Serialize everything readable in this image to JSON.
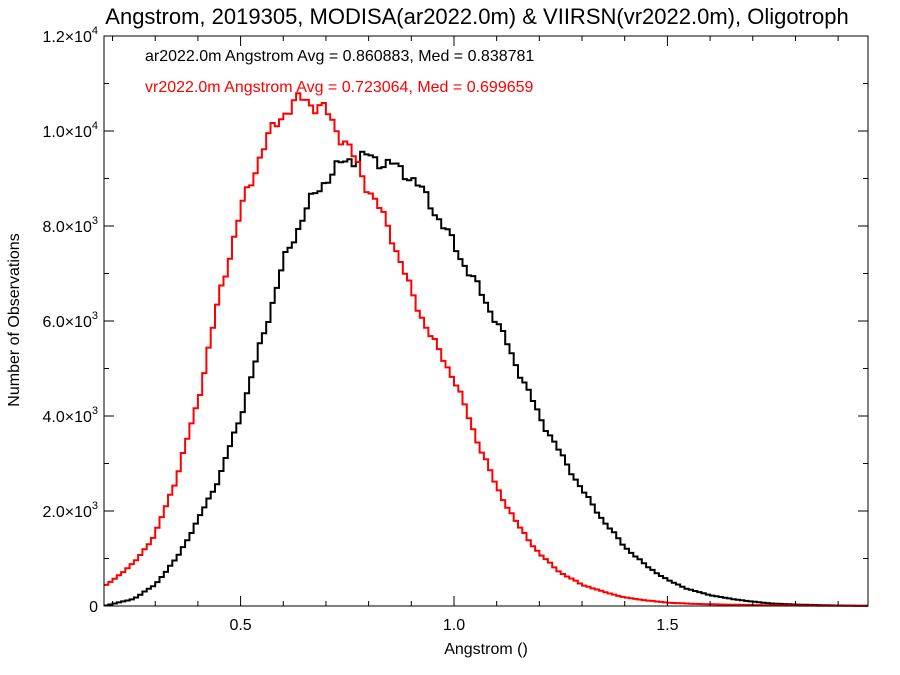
{
  "chart_data": {
    "type": "histogram-step",
    "title": "Angstrom, 2019305, MODISA(ar2022.0m) & VIIRSN(vr2022.0m), Oligotroph",
    "xlabel": "Angstrom ()",
    "ylabel": "Number of Observations",
    "xlim": [
      0.18,
      1.97
    ],
    "ylim": [
      0,
      12000
    ],
    "x_ticks": [
      {
        "value": 0.5,
        "label": "0.5"
      },
      {
        "value": 1.0,
        "label": "1.0"
      },
      {
        "value": 1.5,
        "label": "1.5"
      }
    ],
    "y_ticks": [
      {
        "value": 0,
        "mantissa": "0",
        "exp": ""
      },
      {
        "value": 2000,
        "mantissa": "2.0×10",
        "exp": "3"
      },
      {
        "value": 4000,
        "mantissa": "4.0×10",
        "exp": "3"
      },
      {
        "value": 6000,
        "mantissa": "6.0×10",
        "exp": "3"
      },
      {
        "value": 8000,
        "mantissa": "8.0×10",
        "exp": "3"
      },
      {
        "value": 10000,
        "mantissa": "1.0×10",
        "exp": "4"
      },
      {
        "value": 12000,
        "mantissa": "1.2×10",
        "exp": "4"
      }
    ],
    "annotations": [
      {
        "text": "ar2022.0m Angstrom Avg = 0.860883, Med = 0.838781",
        "color": "#000000"
      },
      {
        "text": "vr2022.0m Angstrom Avg = 0.723064, Med = 0.699659",
        "color": "#ff0000"
      }
    ],
    "series": [
      {
        "color": "#000000",
        "points": [
          [
            0.18,
            0
          ],
          [
            0.25,
            150
          ],
          [
            0.3,
            450
          ],
          [
            0.35,
            1000
          ],
          [
            0.4,
            1800
          ],
          [
            0.45,
            2700
          ],
          [
            0.5,
            4000
          ],
          [
            0.55,
            5600
          ],
          [
            0.6,
            7200
          ],
          [
            0.65,
            8300
          ],
          [
            0.7,
            9000
          ],
          [
            0.75,
            9400
          ],
          [
            0.8,
            9450
          ],
          [
            0.85,
            9300
          ],
          [
            0.9,
            9050
          ],
          [
            0.95,
            8400
          ],
          [
            1.0,
            7600
          ],
          [
            1.05,
            6800
          ],
          [
            1.1,
            6000
          ],
          [
            1.15,
            5000
          ],
          [
            1.2,
            4000
          ],
          [
            1.25,
            3200
          ],
          [
            1.3,
            2450
          ],
          [
            1.35,
            1800
          ],
          [
            1.4,
            1250
          ],
          [
            1.45,
            850
          ],
          [
            1.5,
            550
          ],
          [
            1.55,
            350
          ],
          [
            1.6,
            230
          ],
          [
            1.65,
            150
          ],
          [
            1.7,
            90
          ],
          [
            1.75,
            50
          ],
          [
            1.8,
            30
          ],
          [
            1.9,
            10
          ],
          [
            1.97,
            5
          ]
        ]
      },
      {
        "color": "#ff0000",
        "points": [
          [
            0.18,
            400
          ],
          [
            0.25,
            900
          ],
          [
            0.3,
            1500
          ],
          [
            0.35,
            2700
          ],
          [
            0.4,
            4300
          ],
          [
            0.45,
            6500
          ],
          [
            0.5,
            8300
          ],
          [
            0.55,
            9600
          ],
          [
            0.6,
            10400
          ],
          [
            0.65,
            10700
          ],
          [
            0.7,
            10400
          ],
          [
            0.75,
            9700
          ],
          [
            0.8,
            8800
          ],
          [
            0.85,
            7900
          ],
          [
            0.9,
            6600
          ],
          [
            0.95,
            5600
          ],
          [
            1.0,
            4800
          ],
          [
            1.05,
            3600
          ],
          [
            1.1,
            2500
          ],
          [
            1.15,
            1700
          ],
          [
            1.2,
            1100
          ],
          [
            1.25,
            700
          ],
          [
            1.3,
            450
          ],
          [
            1.35,
            300
          ],
          [
            1.4,
            180
          ],
          [
            1.45,
            120
          ],
          [
            1.5,
            70
          ],
          [
            1.55,
            50
          ],
          [
            1.6,
            35
          ],
          [
            1.7,
            20
          ],
          [
            1.8,
            10
          ],
          [
            1.9,
            5
          ],
          [
            1.97,
            2
          ]
        ]
      }
    ]
  }
}
